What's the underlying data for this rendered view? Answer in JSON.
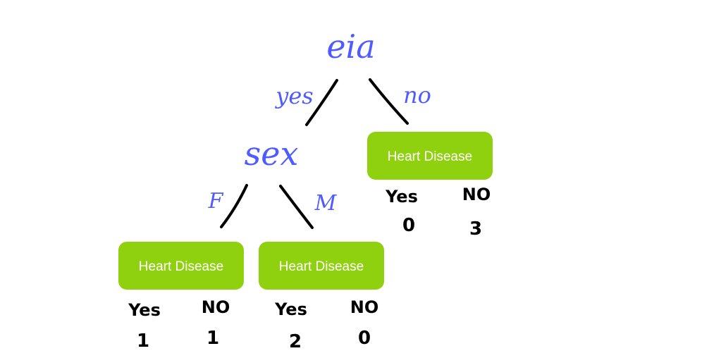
{
  "colors": {
    "node_text": "#4f5bff",
    "edge": "#000000",
    "leaf_fill": "#8fd10f",
    "leaf_text": "#ffffff",
    "count_text": "#000000"
  },
  "tree": {
    "root": {
      "label": "eia",
      "edge_yes": "yes",
      "edge_no": "no"
    },
    "sex_node": {
      "label": "sex",
      "edge_f": "F",
      "edge_m": "M"
    },
    "leaf_no": {
      "label": "Heart Disease",
      "yes_label": "Yes",
      "no_label": "NO",
      "yes_count": "0",
      "no_count": "3"
    },
    "leaf_f": {
      "label": "Heart Disease",
      "yes_label": "Yes",
      "no_label": "NO",
      "yes_count": "1",
      "no_count": "1"
    },
    "leaf_m": {
      "label": "Heart Disease",
      "yes_label": "Yes",
      "no_label": "NO",
      "yes_count": "2",
      "no_count": "0"
    }
  }
}
